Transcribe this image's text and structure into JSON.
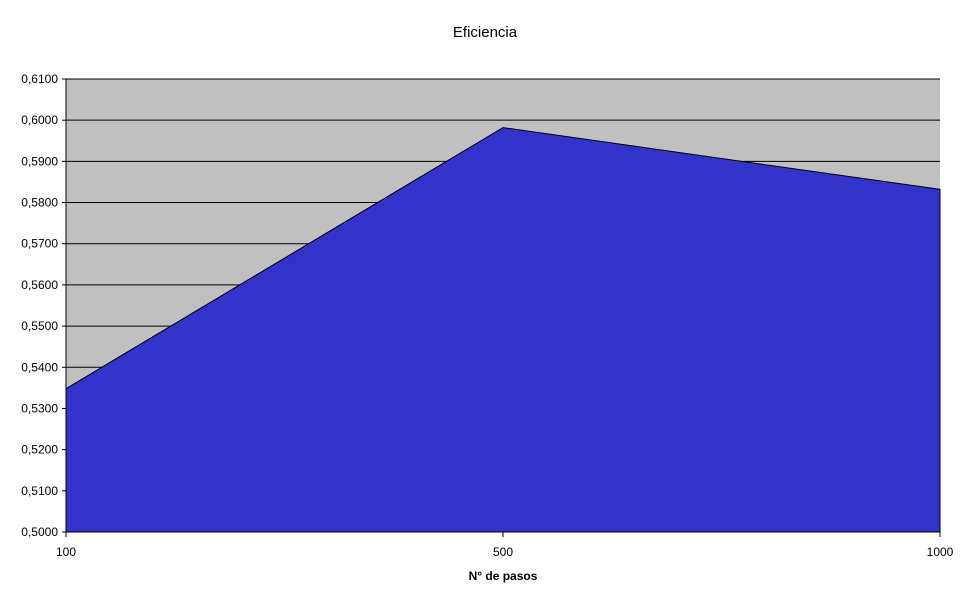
{
  "chart_data": {
    "type": "area",
    "title": "Eficiencia",
    "xlabel": "N° de pasos",
    "ylabel": "",
    "categories": [
      "100",
      "500",
      "1000"
    ],
    "series": [
      {
        "values": [
          0.5348,
          0.5982,
          0.5832
        ]
      }
    ],
    "ylim": [
      0.5,
      0.61
    ],
    "ytick_step": 0.01,
    "ytick_labels": [
      "0,5000",
      "0,5100",
      "0,5200",
      "0,5300",
      "0,5400",
      "0,5500",
      "0,5600",
      "0,5700",
      "0,5800",
      "0,5900",
      "0,6000",
      "0,6100"
    ],
    "grid": true,
    "legend": "none",
    "colors": {
      "plot_background": "#c0c0c0",
      "area_fill": "#3333cc",
      "gridline": "#000000"
    }
  }
}
